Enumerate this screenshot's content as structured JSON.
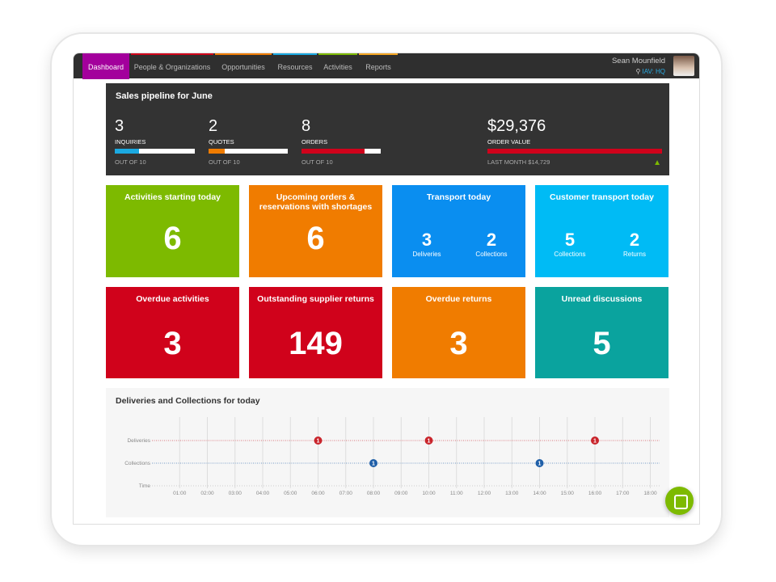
{
  "nav": {
    "tabs": [
      {
        "label": "Dashboard",
        "color": "#a3009c"
      },
      {
        "label": "People & Organizations",
        "color": "#d0021b"
      },
      {
        "label": "Opportunities",
        "color": "#f07c00"
      },
      {
        "label": "Resources",
        "color": "#1ba9e1"
      },
      {
        "label": "Activities",
        "color": "#7dba00"
      },
      {
        "label": "Reports",
        "color": "#f5a623"
      }
    ],
    "user": "Sean Mounfield",
    "location": "IAV: HQ"
  },
  "pipeline": {
    "title": "Sales pipeline for June",
    "stats": [
      {
        "value": "3",
        "label": "INQUIRIES",
        "sub": "OUT OF 10",
        "fraction": 0.3,
        "color": "#1ba9e1"
      },
      {
        "value": "2",
        "label": "QUOTES",
        "sub": "OUT OF 10",
        "fraction": 0.2,
        "color": "#f07c00"
      },
      {
        "value": "8",
        "label": "ORDERS",
        "sub": "OUT OF 10",
        "fraction": 0.8,
        "color": "#d0021b"
      }
    ],
    "order_value": {
      "value": "$29,376",
      "label": "ORDER VALUE",
      "sub": "LAST MONTH $14,729",
      "fraction": 1.0,
      "color": "#d0021b",
      "trend": "arrow-up-icon"
    }
  },
  "tiles": [
    {
      "title": "Activities starting today",
      "value": "6",
      "color": "#7dba00"
    },
    {
      "title": "Upcoming orders & reservations with shortages",
      "value": "6",
      "color": "#f07c00"
    },
    {
      "title": "Transport today",
      "color": "#0a8ef0",
      "subs": [
        {
          "value": "3",
          "label": "Deliveries"
        },
        {
          "value": "2",
          "label": "Collections"
        }
      ]
    },
    {
      "title": "Customer transport today",
      "color": "#00bbf5",
      "subs": [
        {
          "value": "5",
          "label": "Collections"
        },
        {
          "value": "2",
          "label": "Returns"
        }
      ]
    },
    {
      "title": "Overdue activities",
      "value": "3",
      "color": "#d0021b"
    },
    {
      "title": "Outstanding supplier returns",
      "value": "149",
      "color": "#d0021b"
    },
    {
      "title": "Overdue returns",
      "value": "3",
      "color": "#f07c00"
    },
    {
      "title": "Unread discussions",
      "value": "5",
      "color": "#0aa39e"
    }
  ],
  "chart_data": {
    "type": "scatter",
    "title": "Deliveries and Collections for today",
    "categories": [
      "Deliveries",
      "Collections",
      "Time"
    ],
    "x_ticks": [
      "01:00",
      "02:00",
      "03:00",
      "04:00",
      "05:00",
      "06:00",
      "07:00",
      "08:00",
      "09:00",
      "10:00",
      "11:00",
      "12:00",
      "13:00",
      "14:00",
      "15:00",
      "16:00",
      "17:00",
      "18:00"
    ],
    "series": [
      {
        "name": "Deliveries",
        "color": "#c9252c",
        "points": [
          {
            "x": "06:00",
            "count": 1
          },
          {
            "x": "10:00",
            "count": 1
          },
          {
            "x": "16:00",
            "count": 1
          }
        ]
      },
      {
        "name": "Collections",
        "color": "#1f5fa8",
        "points": [
          {
            "x": "08:00",
            "count": 1
          },
          {
            "x": "14:00",
            "count": 1
          }
        ]
      }
    ],
    "grid": true
  }
}
